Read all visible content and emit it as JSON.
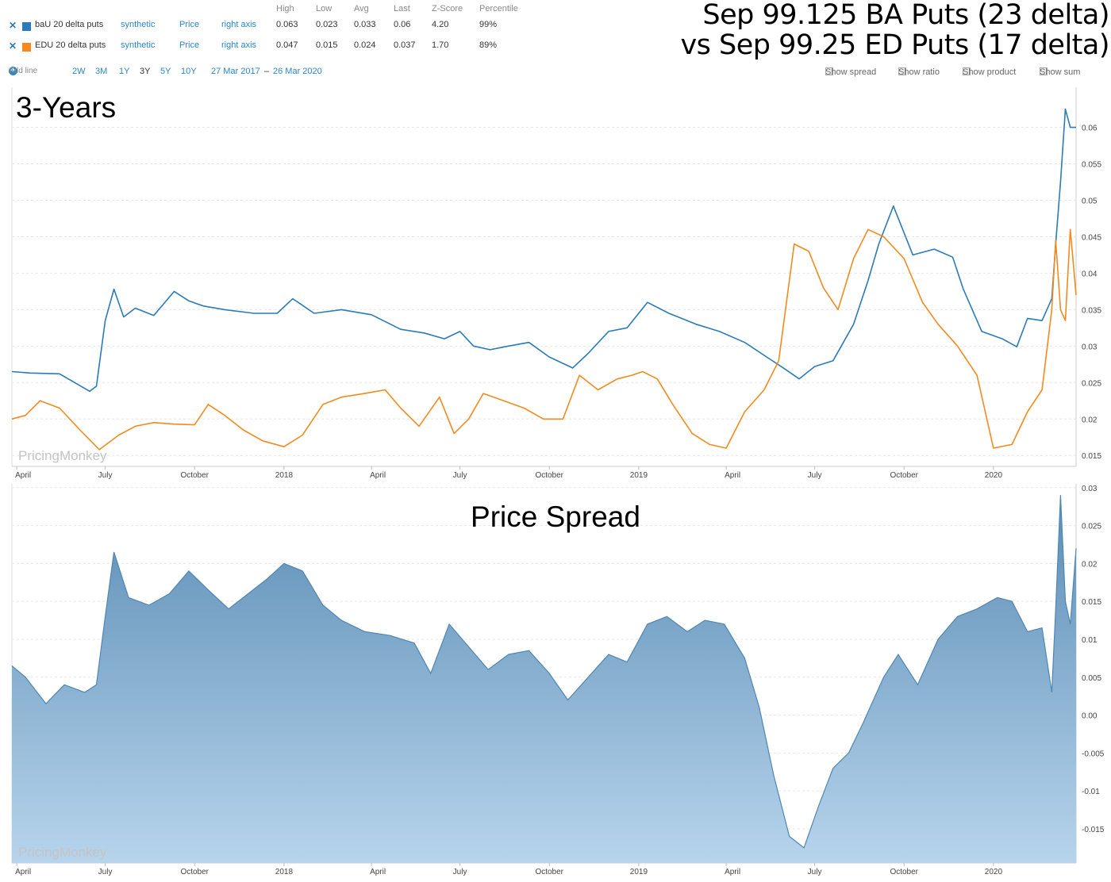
{
  "title": {
    "line1": "Sep 99.125 BA Puts (23 delta)",
    "line2": "vs Sep 99.25 ED Puts (17 delta)"
  },
  "legend": {
    "headers": [
      "High",
      "Low",
      "Avg",
      "Last",
      "Z-Score",
      "Percentile"
    ],
    "rows": [
      {
        "name": "baU 20 delta puts",
        "color": "#2b7bb9",
        "source": "synthetic",
        "field": "Price",
        "axis": "right axis",
        "high": "0.063",
        "low": "0.023",
        "avg": "0.033",
        "last": "0.06",
        "zscore": "4.20",
        "percentile": "99%"
      },
      {
        "name": "EDU 20 delta puts",
        "color": "#f28b1f",
        "source": "synthetic",
        "field": "Price",
        "axis": "right axis",
        "high": "0.047",
        "low": "0.015",
        "avg": "0.024",
        "last": "0.037",
        "zscore": "1.70",
        "percentile": "89%"
      }
    ]
  },
  "toolbar": {
    "add_line": "Add line",
    "ranges": [
      "2W",
      "3M",
      "1Y",
      "3Y",
      "5Y",
      "10Y"
    ],
    "active_range": "3Y",
    "date_from": "27 Mar 2017",
    "date_sep": "–",
    "date_to": "26 Mar 2020",
    "options": [
      "Show spread",
      "Show ratio",
      "Show product",
      "Show sum"
    ]
  },
  "chart_data": [
    {
      "type": "line",
      "title": "3-Years",
      "watermark": "PricingMonkey",
      "x_range": [
        "2017-03-27",
        "2020-03-26"
      ],
      "ylim": [
        0.0135,
        0.0655
      ],
      "yticks": [
        "0.015",
        "0.02",
        "0.025",
        "0.03",
        "0.035",
        "0.04",
        "0.045",
        "0.05",
        "0.055",
        "0.06"
      ],
      "xticks": [
        {
          "label": "April",
          "date": "2017-04-01"
        },
        {
          "label": "July",
          "date": "2017-07-01"
        },
        {
          "label": "October",
          "date": "2017-10-01"
        },
        {
          "label": "2018",
          "date": "2018-01-01"
        },
        {
          "label": "April",
          "date": "2018-04-01"
        },
        {
          "label": "July",
          "date": "2018-07-01"
        },
        {
          "label": "October",
          "date": "2018-10-01"
        },
        {
          "label": "2019",
          "date": "2019-01-01"
        },
        {
          "label": "April",
          "date": "2019-04-01"
        },
        {
          "label": "July",
          "date": "2019-07-01"
        },
        {
          "label": "October",
          "date": "2019-10-01"
        },
        {
          "label": "2020",
          "date": "2020-01-01"
        }
      ],
      "grid": true,
      "series": [
        {
          "name": "baU 20 delta puts",
          "color": "#2b7bb9",
          "x": [
            "2017-03-27",
            "2017-04-15",
            "2017-05-15",
            "2017-06-15",
            "2017-06-22",
            "2017-07-01",
            "2017-07-10",
            "2017-07-20",
            "2017-08-01",
            "2017-08-20",
            "2017-09-10",
            "2017-09-25",
            "2017-10-10",
            "2017-11-01",
            "2017-12-01",
            "2017-12-25",
            "2018-01-10",
            "2018-02-01",
            "2018-03-01",
            "2018-04-01",
            "2018-05-01",
            "2018-05-25",
            "2018-06-15",
            "2018-07-01",
            "2018-07-15",
            "2018-08-01",
            "2018-08-20",
            "2018-09-10",
            "2018-10-01",
            "2018-10-25",
            "2018-11-10",
            "2018-12-01",
            "2018-12-20",
            "2019-01-10",
            "2019-02-01",
            "2019-03-01",
            "2019-03-25",
            "2019-04-20",
            "2019-05-15",
            "2019-06-01",
            "2019-06-15",
            "2019-07-01",
            "2019-07-20",
            "2019-08-10",
            "2019-08-25",
            "2019-09-05",
            "2019-09-20",
            "2019-10-10",
            "2019-11-01",
            "2019-11-20",
            "2019-12-01",
            "2019-12-20",
            "2020-01-10",
            "2020-01-25",
            "2020-02-05",
            "2020-02-20",
            "2020-03-01",
            "2020-03-05",
            "2020-03-10",
            "2020-03-15",
            "2020-03-20",
            "2020-03-26"
          ],
          "y": [
            0.0265,
            0.0263,
            0.0262,
            0.0238,
            0.0245,
            0.0335,
            0.0378,
            0.034,
            0.0352,
            0.0342,
            0.0375,
            0.0362,
            0.0355,
            0.035,
            0.0345,
            0.0345,
            0.0365,
            0.0345,
            0.035,
            0.0343,
            0.0323,
            0.0318,
            0.031,
            0.032,
            0.03,
            0.0295,
            0.03,
            0.0305,
            0.0285,
            0.027,
            0.029,
            0.032,
            0.0325,
            0.036,
            0.0345,
            0.033,
            0.032,
            0.0305,
            0.0283,
            0.0268,
            0.0255,
            0.0272,
            0.028,
            0.033,
            0.039,
            0.044,
            0.0492,
            0.0425,
            0.0433,
            0.0422,
            0.0378,
            0.032,
            0.031,
            0.0299,
            0.0338,
            0.0335,
            0.0365,
            0.044,
            0.0525,
            0.0625,
            0.06,
            0.06
          ]
        },
        {
          "name": "EDU 20 delta puts",
          "color": "#f28b1f",
          "x": [
            "2017-03-27",
            "2017-04-10",
            "2017-04-25",
            "2017-05-15",
            "2017-06-05",
            "2017-06-25",
            "2017-07-15",
            "2017-08-01",
            "2017-08-20",
            "2017-09-10",
            "2017-10-01",
            "2017-10-15",
            "2017-11-01",
            "2017-11-20",
            "2017-12-10",
            "2018-01-01",
            "2018-01-20",
            "2018-02-10",
            "2018-03-01",
            "2018-03-25",
            "2018-04-15",
            "2018-05-01",
            "2018-05-20",
            "2018-06-10",
            "2018-06-25",
            "2018-07-10",
            "2018-07-25",
            "2018-08-15",
            "2018-09-05",
            "2018-09-25",
            "2018-10-15",
            "2018-11-01",
            "2018-11-20",
            "2018-12-10",
            "2018-12-25",
            "2019-01-05",
            "2019-01-20",
            "2019-02-05",
            "2019-02-25",
            "2019-03-15",
            "2019-04-01",
            "2019-04-20",
            "2019-05-10",
            "2019-05-25",
            "2019-06-10",
            "2019-06-25",
            "2019-07-10",
            "2019-07-25",
            "2019-08-10",
            "2019-08-25",
            "2019-09-10",
            "2019-10-01",
            "2019-10-20",
            "2019-11-05",
            "2019-11-25",
            "2019-12-15",
            "2020-01-01",
            "2020-01-20",
            "2020-02-05",
            "2020-02-20",
            "2020-03-01",
            "2020-03-05",
            "2020-03-10",
            "2020-03-15",
            "2020-03-20",
            "2020-03-26"
          ],
          "y": [
            0.02,
            0.0205,
            0.0225,
            0.0215,
            0.0185,
            0.0158,
            0.0178,
            0.019,
            0.0195,
            0.0193,
            0.0192,
            0.022,
            0.0205,
            0.0185,
            0.017,
            0.0162,
            0.0178,
            0.022,
            0.023,
            0.0235,
            0.024,
            0.0215,
            0.019,
            0.023,
            0.018,
            0.02,
            0.0235,
            0.0225,
            0.0215,
            0.02,
            0.02,
            0.026,
            0.024,
            0.0255,
            0.026,
            0.0265,
            0.0255,
            0.022,
            0.018,
            0.0165,
            0.016,
            0.021,
            0.024,
            0.028,
            0.044,
            0.043,
            0.038,
            0.035,
            0.042,
            0.046,
            0.045,
            0.042,
            0.036,
            0.033,
            0.03,
            0.026,
            0.016,
            0.0165,
            0.021,
            0.024,
            0.035,
            0.0445,
            0.035,
            0.0335,
            0.046,
            0.037
          ]
        }
      ]
    },
    {
      "type": "area",
      "title": "Price Spread",
      "watermark": "PricingMonkey",
      "x_range": [
        "2017-03-27",
        "2020-03-26"
      ],
      "ylim": [
        -0.0195,
        0.0305
      ],
      "yticks": [
        "-0.015",
        "-0.01",
        "-0.005",
        "0.00",
        "0.005",
        "0.01",
        "0.015",
        "0.02",
        "0.025",
        "0.03"
      ],
      "xticks": [
        {
          "label": "April",
          "date": "2017-04-01"
        },
        {
          "label": "July",
          "date": "2017-07-01"
        },
        {
          "label": "October",
          "date": "2017-10-01"
        },
        {
          "label": "2018",
          "date": "2018-01-01"
        },
        {
          "label": "April",
          "date": "2018-04-01"
        },
        {
          "label": "July",
          "date": "2018-07-01"
        },
        {
          "label": "October",
          "date": "2018-10-01"
        },
        {
          "label": "2019",
          "date": "2019-01-01"
        },
        {
          "label": "April",
          "date": "2019-04-01"
        },
        {
          "label": "July",
          "date": "2019-07-01"
        },
        {
          "label": "October",
          "date": "2019-10-01"
        },
        {
          "label": "2020",
          "date": "2020-01-01"
        }
      ],
      "grid": true,
      "series": [
        {
          "color": "#4f87b4",
          "x": [
            "2017-03-27",
            "2017-04-10",
            "2017-05-01",
            "2017-05-20",
            "2017-06-10",
            "2017-06-22",
            "2017-07-01",
            "2017-07-10",
            "2017-07-25",
            "2017-08-15",
            "2017-09-05",
            "2017-09-25",
            "2017-10-15",
            "2017-11-05",
            "2017-11-25",
            "2017-12-15",
            "2018-01-01",
            "2018-01-20",
            "2018-02-10",
            "2018-03-01",
            "2018-03-25",
            "2018-04-20",
            "2018-05-15",
            "2018-06-01",
            "2018-06-20",
            "2018-07-10",
            "2018-07-30",
            "2018-08-20",
            "2018-09-10",
            "2018-10-01",
            "2018-10-20",
            "2018-11-10",
            "2018-12-01",
            "2018-12-20",
            "2019-01-10",
            "2019-01-30",
            "2019-02-20",
            "2019-03-10",
            "2019-03-30",
            "2019-04-20",
            "2019-05-05",
            "2019-05-20",
            "2019-06-05",
            "2019-06-20",
            "2019-07-05",
            "2019-07-20",
            "2019-08-05",
            "2019-08-20",
            "2019-09-10",
            "2019-09-25",
            "2019-10-15",
            "2019-11-05",
            "2019-11-25",
            "2019-12-15",
            "2020-01-05",
            "2020-01-20",
            "2020-02-05",
            "2020-02-20",
            "2020-03-01",
            "2020-03-05",
            "2020-03-10",
            "2020-03-15",
            "2020-03-20",
            "2020-03-26"
          ],
          "y": [
            0.0065,
            0.005,
            0.0015,
            0.004,
            0.003,
            0.004,
            0.013,
            0.0215,
            0.0155,
            0.0145,
            0.016,
            0.019,
            0.0165,
            0.014,
            0.016,
            0.018,
            0.02,
            0.019,
            0.0145,
            0.0125,
            0.011,
            0.0105,
            0.0095,
            0.0055,
            0.012,
            0.009,
            0.006,
            0.008,
            0.0085,
            0.0055,
            0.002,
            0.005,
            0.008,
            0.007,
            0.012,
            0.013,
            0.011,
            0.0125,
            0.012,
            0.0075,
            0.001,
            -0.008,
            -0.016,
            -0.0175,
            -0.012,
            -0.007,
            -0.005,
            -0.001,
            0.005,
            0.008,
            0.004,
            0.01,
            0.013,
            0.014,
            0.0155,
            0.015,
            0.011,
            0.0115,
            0.003,
            0.014,
            0.029,
            0.015,
            0.012,
            0.022
          ]
        }
      ]
    }
  ]
}
